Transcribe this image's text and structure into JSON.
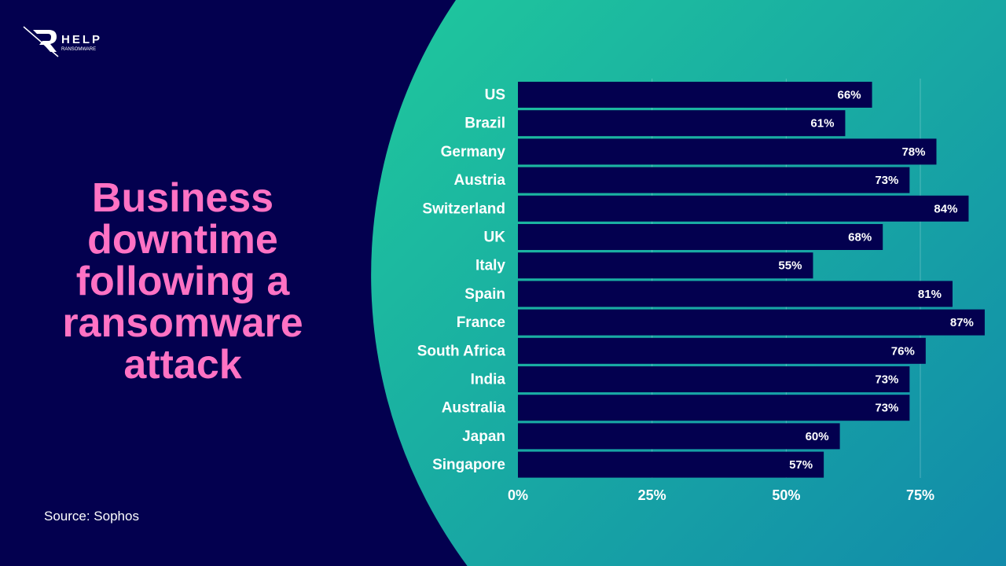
{
  "logo": {
    "text": "HELP",
    "subtext": "RANSOMWARE"
  },
  "title": "Business downtime following a ransomware attack",
  "source": "Source: Sophos",
  "colors": {
    "background": "#03004f",
    "title": "#ff72c4",
    "bar": "#03004f",
    "circle_start": "#22d39a",
    "circle_end": "#0b6fb0"
  },
  "chart_data": {
    "type": "bar",
    "orientation": "horizontal",
    "categories": [
      "US",
      "Brazil",
      "Germany",
      "Austria",
      "Switzerland",
      "UK",
      "Italy",
      "Spain",
      "France",
      "South Africa",
      "India",
      "Australia",
      "Japan",
      "Singapore"
    ],
    "values": [
      66,
      61,
      78,
      73,
      84,
      68,
      55,
      81,
      87,
      76,
      73,
      73,
      60,
      57
    ],
    "data_labels": [
      "66%",
      "61%",
      "78%",
      "73%",
      "84%",
      "68%",
      "55%",
      "81%",
      "87%",
      "76%",
      "73%",
      "73%",
      "60%",
      "57%"
    ],
    "x_ticks": [
      "0%",
      "25%",
      "50%",
      "75%"
    ],
    "x_tick_values": [
      0,
      25,
      50,
      75
    ],
    "xlim": [
      0,
      87
    ],
    "grid": true,
    "legend": "none"
  }
}
